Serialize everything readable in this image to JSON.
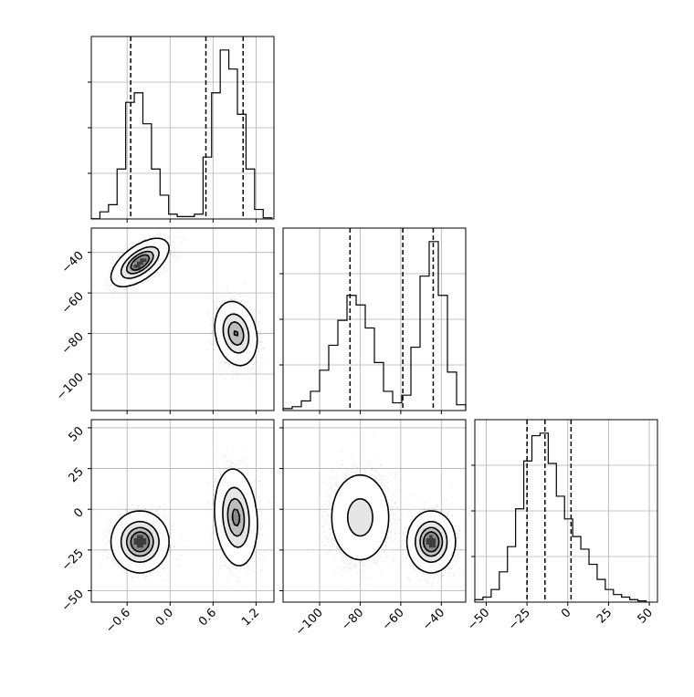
{
  "chart_data": {
    "type": "corner",
    "parameters": [
      {
        "range": [
          -1.1,
          1.45
        ],
        "ticks": [
          -0.6,
          0.0,
          0.6,
          1.2
        ],
        "tick_labels": [
          "−0.6",
          "0.0",
          "0.6",
          "1.2"
        ],
        "quantiles": [
          -0.55,
          0.5,
          1.02
        ]
      },
      {
        "range": [
          -118,
          -28
        ],
        "ticks": [
          -100,
          -80,
          -60,
          -40
        ],
        "tick_labels": [
          "−100",
          "−80",
          "−60",
          "−40"
        ],
        "quantiles": [
          -85,
          -59,
          -44
        ]
      },
      {
        "range": [
          -57,
          55
        ],
        "ticks": [
          -50,
          -25,
          0,
          25,
          50
        ],
        "tick_labels": [
          "−50",
          "−25",
          "0",
          "25",
          "50"
        ],
        "quantiles": [
          -25,
          -14,
          2
        ]
      }
    ],
    "modes": [
      {
        "w": 0.5,
        "mean": [
          -0.42,
          -45,
          -20
        ],
        "sd": [
          0.17,
          5,
          8
        ],
        "rho01": 0.6,
        "rho02": 0,
        "rho12": 0
      },
      {
        "w": 0.5,
        "mean": [
          0.92,
          -80,
          -5
        ],
        "sd": [
          0.13,
          7,
          13
        ],
        "rho01": -0.2,
        "rho02": -0.15,
        "rho12": 0
      }
    ],
    "histograms": [
      {
        "param": 0,
        "bins": [
          -1.1,
          -0.98,
          -0.86,
          -0.74,
          -0.62,
          -0.5,
          -0.38,
          -0.26,
          -0.14,
          -0.02,
          0.1,
          0.22,
          0.34,
          0.46,
          0.58,
          0.7,
          0.82,
          0.94,
          1.06,
          1.18,
          1.3,
          1.42
        ],
        "counts": [
          0.1,
          3,
          6,
          21,
          49,
          53,
          40,
          21,
          10,
          2,
          1,
          1,
          2,
          26,
          53,
          71,
          63,
          44,
          21,
          4,
          0.5
        ]
      },
      {
        "param": 1,
        "bins": [
          -118,
          -113.5,
          -109,
          -104.5,
          -100,
          -95.5,
          -91,
          -86.5,
          -82,
          -77.5,
          -73,
          -68.5,
          -64,
          -59.5,
          -55,
          -50.5,
          -46,
          -41.5,
          -37,
          -32.5,
          -28
        ],
        "counts": [
          1,
          2,
          5,
          10,
          21,
          34,
          47,
          60,
          55,
          43,
          25,
          10,
          4,
          8,
          33,
          70,
          88,
          60,
          20,
          3
        ]
      },
      {
        "param": 2,
        "bins": [
          -57,
          -52,
          -47,
          -42,
          -37,
          -32,
          -27,
          -22,
          -17,
          -12,
          -7,
          -2,
          3,
          8,
          13,
          18,
          23,
          28,
          33,
          38,
          43,
          48
        ],
        "counts": [
          1,
          2,
          5,
          12,
          22,
          37,
          56,
          66,
          67,
          55,
          42,
          33,
          26,
          21,
          15,
          9,
          5,
          3,
          2,
          1,
          0.5
        ]
      }
    ]
  }
}
